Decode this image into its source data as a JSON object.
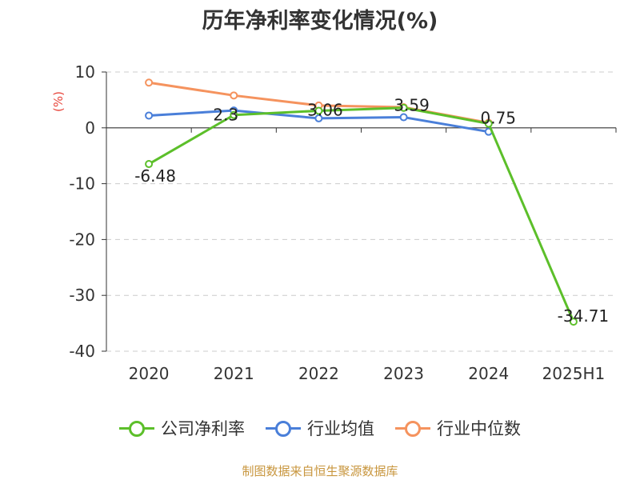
{
  "title": "历年净利率变化情况(%)",
  "footer": "制图数据来自恒生聚源数据库",
  "chart_data": {
    "type": "line",
    "title": "历年净利率变化情况(%)",
    "ylabel": "(%)",
    "categories": [
      "2020",
      "2021",
      "2022",
      "2023",
      "2024",
      "2025H1"
    ],
    "ylim": [
      -40,
      10
    ],
    "yticks": [
      10,
      0,
      -10,
      -20,
      -30,
      -40
    ],
    "grid": true,
    "legend_position": "bottom",
    "series": [
      {
        "name": "公司净利率",
        "color": "#5cbf2a",
        "values": [
          -6.48,
          2.3,
          3.06,
          3.59,
          0.75,
          -34.71
        ],
        "labels": [
          "-6.48",
          "2.3",
          "3.06",
          "3.59",
          "0.75",
          "-34.71"
        ]
      },
      {
        "name": "行业均值",
        "color": "#4a7fd9",
        "values": [
          2.2,
          3.1,
          1.7,
          1.9,
          -0.7,
          null
        ]
      },
      {
        "name": "行业中位数",
        "color": "#f5935e",
        "values": [
          8.1,
          5.8,
          4.0,
          3.7,
          0.9,
          null
        ]
      }
    ]
  }
}
